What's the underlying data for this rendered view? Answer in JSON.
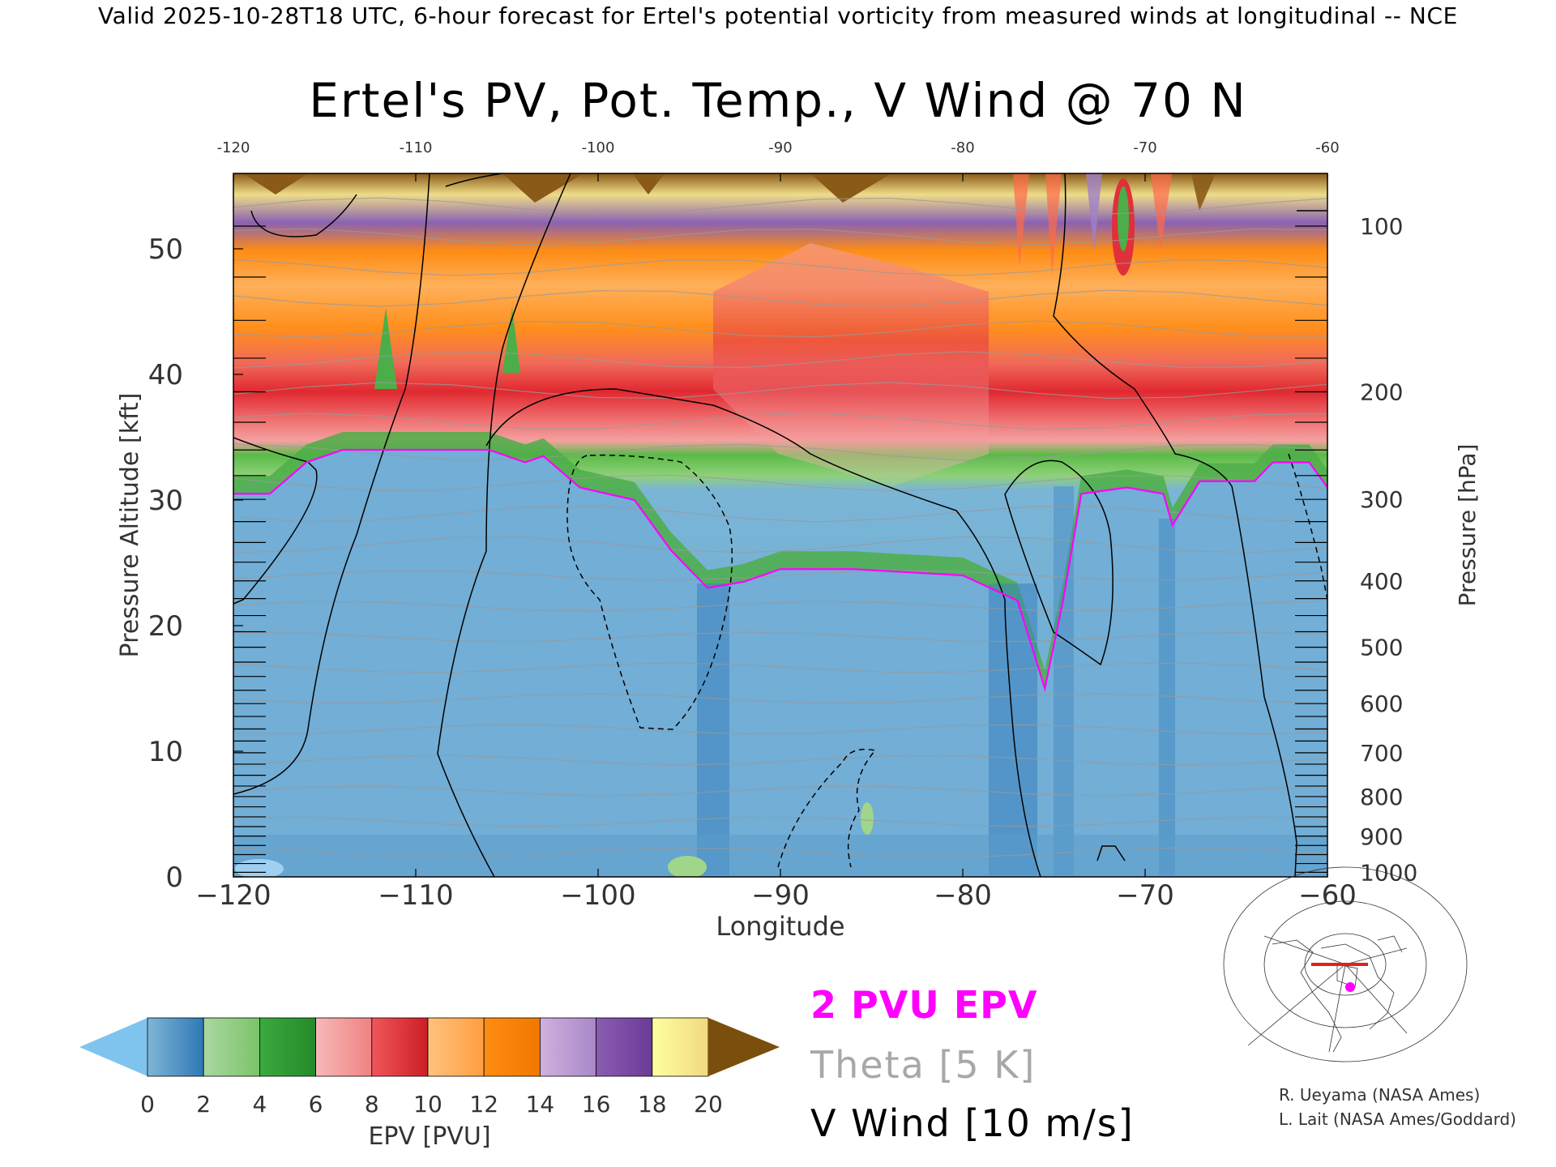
{
  "header": "Valid 2025-10-28T18 UTC, 6-hour forecast for Ertel's potential vorticity from measured winds at longitudinal -- NCE",
  "chart_data": {
    "type": "heatmap",
    "title": "Ertel's PV, Pot. Temp., V Wind @ 70 N",
    "xlabel": "Longitude",
    "ylabel": "Pressure Altitude [kft]",
    "y2label": "Pressure [hPa]",
    "xlim": [
      -120,
      -60
    ],
    "ylim": [
      0,
      56
    ],
    "x_ticks": [
      -120,
      -110,
      -100,
      -90,
      -80,
      -70,
      -60
    ],
    "y_ticks": [
      0,
      10,
      20,
      30,
      40,
      50
    ],
    "pressure_ticks": [
      100,
      200,
      300,
      400,
      500,
      600,
      700,
      800,
      900,
      1000
    ],
    "colorbar": {
      "label": "EPV [PVU]",
      "ticks": [
        0,
        2,
        4,
        6,
        8,
        10,
        12,
        14,
        16,
        18,
        20
      ],
      "under_color": "#7fc4ee",
      "over_color": "#7a4e0c",
      "stops": [
        [
          "#7eb6d6",
          "#2f78b5"
        ],
        [
          "#a9d8a0",
          "#7cc36a"
        ],
        [
          "#3aaa3e",
          "#248a2a"
        ],
        [
          "#f7b8b8",
          "#f08282"
        ],
        [
          "#f0565a",
          "#cc1e26"
        ],
        [
          "#ffc27e",
          "#ff9e3e"
        ],
        [
          "#ff8c14",
          "#f07800"
        ],
        [
          "#d0b0dc",
          "#a888c8"
        ],
        [
          "#8a5cb0",
          "#6a3c98"
        ],
        [
          "#ffffa0",
          "#f0d880"
        ]
      ]
    },
    "tropopause_2pvu_kft": [
      [
        -120,
        30.5
      ],
      [
        -118,
        30.5
      ],
      [
        -116,
        33
      ],
      [
        -114,
        34
      ],
      [
        -112,
        34
      ],
      [
        -110,
        34
      ],
      [
        -106,
        34
      ],
      [
        -104,
        33
      ],
      [
        -103,
        33.5
      ],
      [
        -101,
        31
      ],
      [
        -98,
        30
      ],
      [
        -96,
        26
      ],
      [
        -94,
        23
      ],
      [
        -92,
        23.5
      ],
      [
        -90,
        24.5
      ],
      [
        -86,
        24.5
      ],
      [
        -80,
        24
      ],
      [
        -77,
        22
      ],
      [
        -75.5,
        15
      ],
      [
        -74.5,
        22
      ],
      [
        -73.5,
        30.5
      ],
      [
        -71,
        31
      ],
      [
        -69,
        30.5
      ],
      [
        -68.5,
        28
      ],
      [
        -67,
        31.5
      ],
      [
        -64,
        31.5
      ],
      [
        -63,
        33
      ],
      [
        -61,
        33
      ],
      [
        -60,
        31
      ]
    ],
    "legend": [
      {
        "label": "2 PVU EPV",
        "color": "#ff00ff"
      },
      {
        "label": "Theta [5 K]",
        "color": "#a8a8a8"
      },
      {
        "label": "V Wind [10 m/s]",
        "color": "#000000"
      }
    ]
  },
  "credits": [
    "R. Ueyama (NASA Ames)",
    "L. Lait (NASA Ames/Goddard)"
  ]
}
